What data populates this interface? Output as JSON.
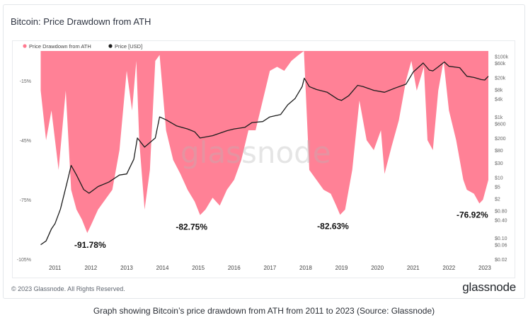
{
  "title": "Bitcoin: Price Drawdown from ATH",
  "copyright": "© 2023 Glassnode. All Rights Reserved.",
  "brand": "glassnode",
  "watermark": "glassnode",
  "caption": "Graph showing Bitcoin’s price drawdown from ATH from 2011 to 2023 (Source: Glassnode)",
  "colors": {
    "drawdown": "#ff7a90",
    "price": "#1d1d1d"
  },
  "chart_data": {
    "type": "area",
    "legend": [
      "Price Drawdown from ATH",
      "Price [USD]"
    ],
    "legend_position": "top-left",
    "x_ticks": [
      "2011",
      "2012",
      "2013",
      "2014",
      "2015",
      "2016",
      "2017",
      "2018",
      "2019",
      "2020",
      "2021",
      "2022",
      "2023"
    ],
    "y_left_ticks": [
      "-15%",
      "-45%",
      "-75%",
      "-105%"
    ],
    "y_left_values": [
      -15,
      -45,
      -75,
      -105
    ],
    "y_left_range": [
      -105,
      10
    ],
    "y_right_ticks": [
      "$100k",
      "$60k",
      "$20k",
      "$8k",
      "$4k",
      "$1k",
      "$600",
      "$200",
      "$80",
      "$30",
      "$10",
      "$5",
      "$2",
      "$0.80",
      "$0.40",
      "$0.10",
      "$0.06",
      "$0.02"
    ],
    "y_right_values": [
      100000,
      60000,
      20000,
      8000,
      4000,
      1000,
      600,
      200,
      80,
      30,
      10,
      5,
      2,
      0.8,
      0.4,
      0.1,
      0.06,
      0.02
    ],
    "y_right_scale": "log",
    "y_right_range": [
      0.02,
      150000
    ],
    "grid": false,
    "series": [
      {
        "name": "Price Drawdown from ATH",
        "x": [
          2010.6,
          2010.75,
          2010.9,
          2011.1,
          2011.3,
          2011.45,
          2011.6,
          2011.75,
          2011.9,
          2012.0,
          2012.2,
          2012.4,
          2012.6,
          2012.8,
          2013.0,
          2013.15,
          2013.27,
          2013.35,
          2013.5,
          2013.65,
          2013.8,
          2013.92,
          2014.1,
          2014.3,
          2014.5,
          2014.7,
          2014.9,
          2015.05,
          2015.2,
          2015.4,
          2015.6,
          2015.8,
          2016.0,
          2016.2,
          2016.4,
          2016.6,
          2016.8,
          2017.0,
          2017.2,
          2017.4,
          2017.6,
          2017.8,
          2017.95,
          2018.1,
          2018.3,
          2018.5,
          2018.7,
          2018.85,
          2018.96,
          2019.1,
          2019.3,
          2019.5,
          2019.7,
          2019.9,
          2020.1,
          2020.2,
          2020.4,
          2020.6,
          2020.8,
          2020.95,
          2021.1,
          2021.3,
          2021.4,
          2021.55,
          2021.7,
          2021.85,
          2022.0,
          2022.2,
          2022.4,
          2022.5,
          2022.7,
          2022.85,
          2022.95,
          2023.1
        ],
        "values": [
          -20,
          -45,
          -30,
          -60,
          -20,
          -70,
          -80,
          -85,
          -91.78,
          -88,
          -80,
          -75,
          -70,
          -50,
          -10,
          -30,
          -5,
          -45,
          -80,
          -60,
          -5,
          -2,
          -40,
          -55,
          -62,
          -70,
          -76,
          -82.75,
          -80,
          -74,
          -78,
          -70,
          -65,
          -55,
          -40,
          -40,
          -25,
          -10,
          -8,
          -10,
          -5,
          -2,
          0,
          -60,
          -65,
          -70,
          -72,
          -78,
          -82.63,
          -80,
          -60,
          -25,
          -45,
          -50,
          -40,
          -62,
          -48,
          -35,
          -15,
          -5,
          -20,
          -8,
          -45,
          -50,
          -20,
          -5,
          -30,
          -45,
          -65,
          -70,
          -72,
          -76.92,
          -75,
          -65
        ]
      },
      {
        "name": "Price [USD]",
        "x": [
          2010.6,
          2010.75,
          2010.9,
          2011.0,
          2011.15,
          2011.35,
          2011.45,
          2011.6,
          2011.8,
          2011.95,
          2012.2,
          2012.5,
          2012.8,
          2013.0,
          2013.2,
          2013.3,
          2013.5,
          2013.8,
          2013.92,
          2014.1,
          2014.4,
          2014.7,
          2014.9,
          2015.05,
          2015.4,
          2015.8,
          2016.0,
          2016.3,
          2016.5,
          2016.8,
          2017.0,
          2017.3,
          2017.5,
          2017.7,
          2017.9,
          2017.96,
          2018.1,
          2018.3,
          2018.6,
          2018.9,
          2019.0,
          2019.2,
          2019.45,
          2019.6,
          2019.9,
          2020.2,
          2020.5,
          2020.8,
          2021.0,
          2021.28,
          2021.45,
          2021.55,
          2021.7,
          2021.87,
          2022.0,
          2022.3,
          2022.5,
          2022.7,
          2022.9,
          2023.0,
          2023.1
        ],
        "values": [
          0.06,
          0.08,
          0.2,
          0.3,
          0.9,
          8,
          25,
          12,
          4,
          3,
          5,
          7,
          12,
          13,
          40,
          200,
          100,
          200,
          1000,
          800,
          500,
          400,
          320,
          200,
          240,
          350,
          400,
          450,
          650,
          700,
          1000,
          1200,
          2500,
          4000,
          10000,
          19000,
          10000,
          8000,
          6500,
          3800,
          3500,
          5000,
          11000,
          10000,
          7500,
          6500,
          9000,
          12000,
          30000,
          60000,
          35000,
          33000,
          45000,
          65000,
          47000,
          42000,
          22000,
          20000,
          17000,
          16500,
          22000
        ]
      }
    ],
    "annotations": [
      "-91.78%",
      "-82.75%",
      "-82.63%",
      "-76.92%"
    ],
    "annotation_values": [
      -91.78,
      -82.75,
      -82.63,
      -76.92
    ],
    "annotation_x": [
      2011.9,
      2015.05,
      2018.96,
      2022.85
    ]
  }
}
